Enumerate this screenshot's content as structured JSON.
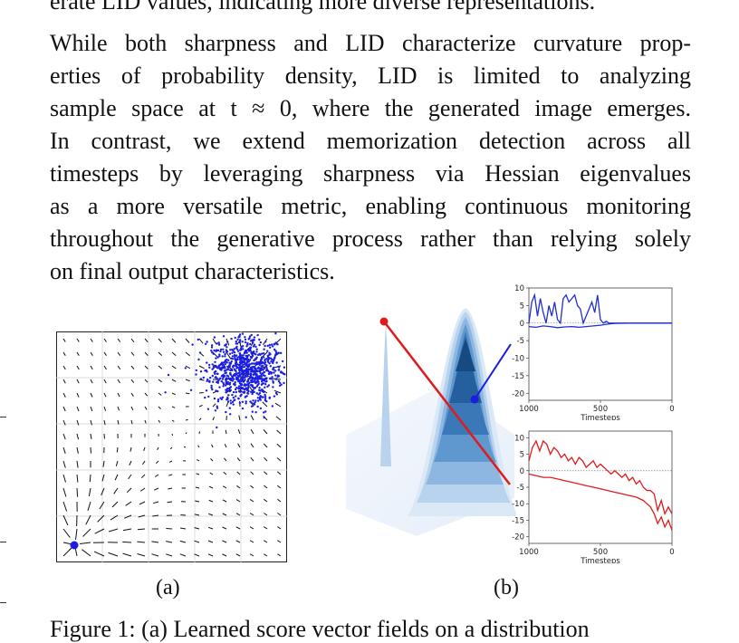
{
  "top_clipped_text": "erate LID values, indicating more diverse representations.",
  "paragraph_lines": [
    "While both sharpness and LID characterize curvature prop-",
    "erties of probability density, LID is limited to analyzing",
    "sample space at t ≈ 0, where the generated image emerges.",
    "In contrast, we extend memorization detection across all",
    "timesteps by leveraging sharpness via Hessian eigenvalues",
    "as a more versatile metric, enabling continuous monitoring",
    "throughout the generative process rather than relying solely",
    "on final output characteristics."
  ],
  "figure": {
    "label_a": "(a)",
    "label_b": "(b)"
  },
  "bottom_clipped_text": "Figure 1: (a) Learned score vector fields on a distribution",
  "chart_data": [
    {
      "type": "line",
      "xlabel": "Timesteps",
      "x_ticks": [
        "1000",
        "500",
        "0"
      ],
      "y_ticks": [
        "10",
        "5",
        "0",
        "-5",
        "-10",
        "-15",
        "-20"
      ],
      "xlim": [
        1000,
        0
      ],
      "ylim": [
        -22,
        10
      ],
      "color": "#1f2fd1",
      "series": [
        {
          "x": [
            1000,
            980,
            960,
            940,
            920,
            900,
            880,
            860,
            840,
            820,
            800,
            780,
            760,
            740,
            720,
            700,
            680,
            660,
            640,
            620,
            600,
            580,
            560,
            540,
            520,
            500,
            480,
            460,
            440,
            420,
            400,
            300,
            200,
            100,
            0
          ],
          "values": [
            0,
            6,
            8,
            2,
            7,
            3,
            0,
            5,
            2,
            6,
            1,
            0,
            7,
            8,
            6,
            7,
            8,
            5,
            4,
            0,
            2,
            4,
            6,
            3,
            8,
            1,
            0,
            0.5,
            0,
            0,
            0,
            0,
            0,
            0,
            0
          ]
        },
        {
          "x": [
            1000,
            950,
            900,
            850,
            800,
            750,
            700,
            650,
            600,
            550,
            500,
            450,
            400,
            300,
            200,
            100,
            0
          ],
          "values": [
            -1,
            -1.2,
            -0.8,
            -1,
            -1.3,
            -1.1,
            -1,
            -1.2,
            -1,
            -0.8,
            -0.6,
            -0.3,
            -0.1,
            0,
            0,
            0,
            0
          ]
        }
      ]
    },
    {
      "type": "line",
      "xlabel": "Timesteps",
      "x_ticks": [
        "1000",
        "500",
        "0"
      ],
      "y_ticks": [
        "10",
        "5",
        "0",
        "-5",
        "-10",
        "-15",
        "-20"
      ],
      "xlim": [
        1000,
        0
      ],
      "ylim": [
        -22,
        12
      ],
      "color": "#e01b1b",
      "series": [
        {
          "x": [
            1000,
            975,
            950,
            925,
            900,
            875,
            850,
            825,
            800,
            775,
            750,
            725,
            700,
            675,
            650,
            625,
            600,
            575,
            550,
            525,
            500,
            475,
            450,
            425,
            400,
            375,
            350,
            325,
            300,
            275,
            250,
            225,
            200,
            175,
            150,
            125,
            100,
            75,
            50,
            25,
            0
          ],
          "values": [
            3,
            7,
            9,
            6,
            9,
            8,
            5,
            7,
            6,
            4,
            5,
            3,
            4,
            2,
            4,
            3,
            1,
            2,
            3,
            1,
            2,
            1,
            0,
            -1,
            0,
            -1,
            -2,
            -1,
            -3,
            -2,
            -4,
            -3,
            -5,
            -6,
            -6,
            -7,
            -12,
            -9,
            -13,
            -11,
            -13
          ]
        },
        {
          "x": [
            1000,
            950,
            900,
            850,
            800,
            750,
            700,
            650,
            600,
            550,
            500,
            450,
            400,
            350,
            300,
            250,
            200,
            175,
            150,
            125,
            100,
            75,
            50,
            25,
            0
          ],
          "values": [
            -1,
            -1.5,
            -2,
            -2,
            -2.5,
            -3,
            -3.5,
            -4,
            -4.5,
            -5,
            -5.5,
            -6,
            -6.5,
            -7,
            -7.5,
            -8,
            -9,
            -10,
            -11,
            -13,
            -16,
            -14,
            -17,
            -15,
            -18
          ]
        }
      ]
    }
  ]
}
